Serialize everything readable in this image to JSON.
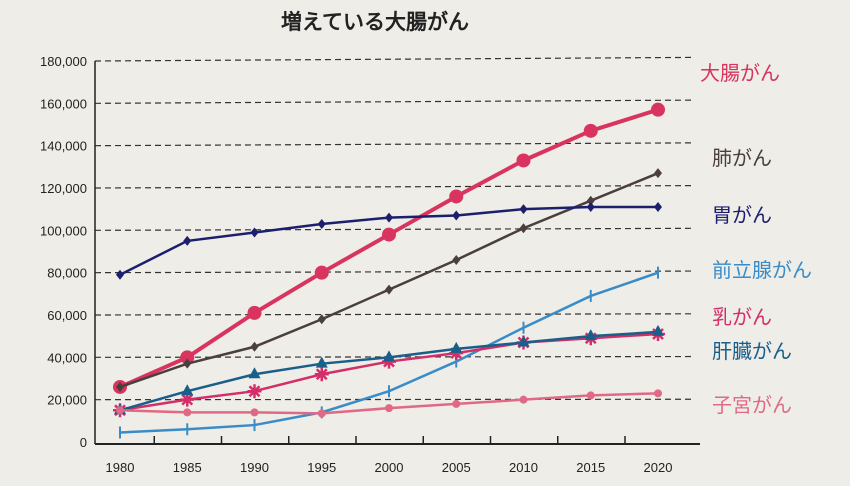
{
  "chart_data": {
    "type": "line",
    "title": "増えている大腸がん",
    "xlabel": "",
    "ylabel": "",
    "x": [
      1980,
      1985,
      1990,
      1995,
      2000,
      2005,
      2010,
      2015,
      2020
    ],
    "ylim": [
      0,
      180000
    ],
    "yticks": [
      "0",
      "20,000",
      "40,000",
      "60,000",
      "80,000",
      "100,000",
      "120,000",
      "140,000",
      "160,000",
      "180,000"
    ],
    "xticks": [
      "1980",
      "1985",
      "1990",
      "1995",
      "2000",
      "2005",
      "2010",
      "2015",
      "2020"
    ],
    "grid": "horizontal dashed",
    "legend": "right, labels at line ends",
    "series": [
      {
        "name": "大腸がん",
        "color": "#d8345f",
        "marker": "circle",
        "values": [
          26000,
          40000,
          61000,
          80000,
          98000,
          116000,
          133000,
          147000,
          157000
        ]
      },
      {
        "name": "肺がん",
        "color": "#4a3f3c",
        "marker": "diamond",
        "values": [
          26000,
          37000,
          45000,
          58000,
          72000,
          86000,
          101000,
          114000,
          127000
        ]
      },
      {
        "name": "胃がん",
        "color": "#1c1f6e",
        "marker": "diamond",
        "values": [
          79000,
          95000,
          99000,
          103000,
          106000,
          107000,
          110000,
          111000,
          111000
        ]
      },
      {
        "name": "前立腺がん",
        "color": "#3a8cc8",
        "marker": "tick",
        "values": [
          4500,
          6000,
          8000,
          14000,
          24000,
          38000,
          54000,
          69000,
          80000
        ]
      },
      {
        "name": "乳がん",
        "color": "#d42e6a",
        "marker": "asterisk",
        "values": [
          15000,
          20000,
          24000,
          32000,
          38000,
          42000,
          47000,
          49000,
          51000
        ]
      },
      {
        "name": "肝臓がん",
        "color": "#1a5f8a",
        "marker": "triangle",
        "values": [
          15000,
          24000,
          32000,
          37000,
          40000,
          44000,
          47000,
          50000,
          52000
        ]
      },
      {
        "name": "子宮がん",
        "color": "#e06a85",
        "marker": "dot",
        "values": [
          15000,
          14000,
          14000,
          13500,
          16000,
          18000,
          20000,
          22000,
          23000
        ]
      }
    ]
  }
}
